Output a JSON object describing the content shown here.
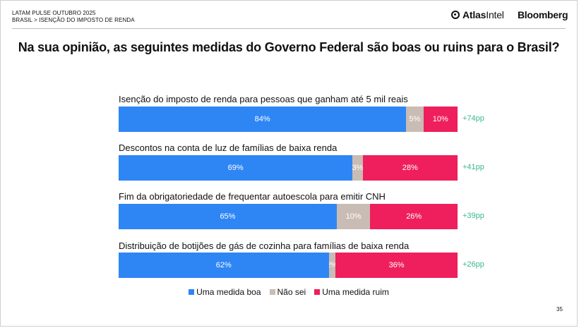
{
  "header": {
    "line1": "LATAM PULSE OUTUBRO 2025",
    "line2": "BRASIL > ISENÇÃO DO IMPOSTO DE RENDA",
    "brand_atlas_a": "Atlas",
    "brand_atlas_b": "Intel",
    "brand_bloomberg": "Bloomberg"
  },
  "page_number": "35",
  "colors": {
    "boa": "#2e86f5",
    "nao_sei": "#c9bcb4",
    "ruim": "#ee1f5c",
    "net": "#3cb68f"
  },
  "chart_data": {
    "type": "bar",
    "orientation": "horizontal",
    "stacked": true,
    "title": "Na sua opinião, as seguintes medidas do Governo Federal são boas ou ruins para o Brasil?",
    "categories": [
      "Isenção do imposto de renda para pessoas que ganham até 5 mil reais",
      "Descontos na conta de luz de famílias de baixa renda",
      "Fim da obrigatoriedade de frequentar autoescola para emitir CNH",
      "Distribuição de botijões de gás de cozinha para famílias de baixa renda"
    ],
    "series": [
      {
        "name": "Uma medida boa",
        "values": [
          84,
          69,
          65,
          62
        ]
      },
      {
        "name": "Não sei",
        "values": [
          5,
          3,
          10,
          2
        ]
      },
      {
        "name": "Uma medida ruim",
        "values": [
          10,
          28,
          26,
          36
        ]
      }
    ],
    "net": [
      "+74pp",
      "+41pp",
      "+39pp",
      "+26pp"
    ],
    "value_suffix": "%",
    "legend_position": "bottom",
    "grid": false
  }
}
